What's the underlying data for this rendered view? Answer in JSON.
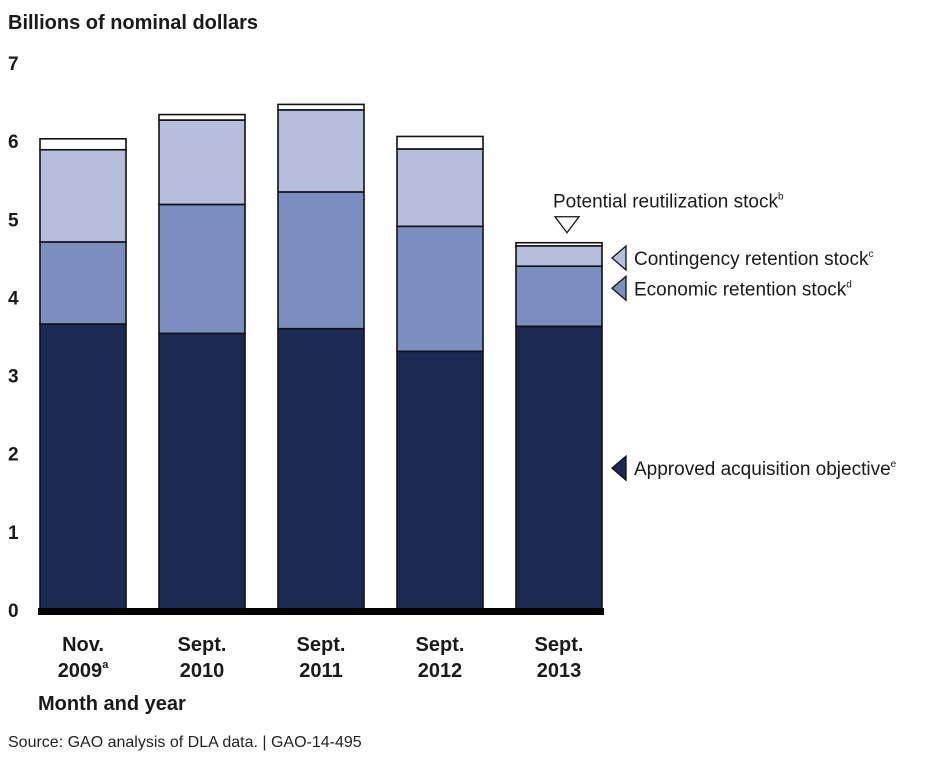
{
  "chart_data": {
    "type": "bar",
    "stacked": true,
    "ylabel": "Billions of nominal dollars",
    "xlabel": "Month and year",
    "ylim": [
      0,
      7
    ],
    "yticks": [
      0,
      1,
      2,
      3,
      4,
      5,
      6,
      7
    ],
    "categories": [
      {
        "line1": "Nov.",
        "line2": "2009",
        "sup": "a"
      },
      {
        "line1": "Sept.",
        "line2": "2010",
        "sup": ""
      },
      {
        "line1": "Sept.",
        "line2": "2011",
        "sup": ""
      },
      {
        "line1": "Sept.",
        "line2": "2012",
        "sup": ""
      },
      {
        "line1": "Sept.",
        "line2": "2013",
        "sup": ""
      }
    ],
    "series": [
      {
        "name": "Approved acquisition objective",
        "sup": "e",
        "color": "#1b2a52",
        "values": [
          3.66,
          3.54,
          3.6,
          3.31,
          3.63
        ]
      },
      {
        "name": "Economic retention stock",
        "sup": "d",
        "color": "#7a8ebf",
        "values": [
          1.05,
          1.65,
          1.75,
          1.6,
          0.77
        ]
      },
      {
        "name": "Contingency retention stock",
        "sup": "c",
        "color": "#b7bedc",
        "values": [
          1.18,
          1.08,
          1.05,
          0.99,
          0.26
        ]
      },
      {
        "name": "Potential reutilization stock",
        "sup": "b",
        "color": "#ffffff",
        "values": [
          0.14,
          0.07,
          0.07,
          0.16,
          0.04
        ]
      }
    ],
    "legend_placement": "right"
  },
  "source_text": "Source: GAO analysis of DLA data.  |  GAO-14-495"
}
